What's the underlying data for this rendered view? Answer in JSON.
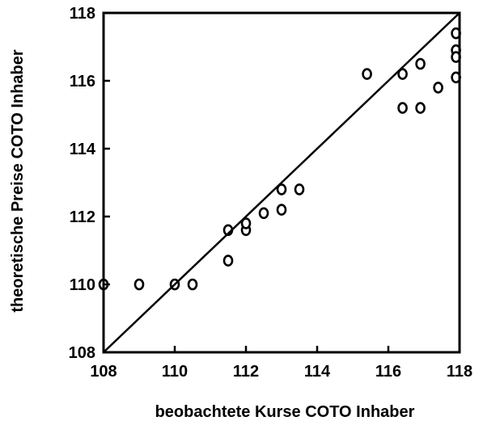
{
  "chart_data": {
    "type": "scatter",
    "title": "",
    "xlabel": "beobachtete Kurse COTO Inhaber",
    "ylabel": "theoretische Preise COTO Inhaber",
    "xlim": [
      108,
      118
    ],
    "ylim": [
      108,
      118
    ],
    "xticks": [
      "108",
      "110",
      "112",
      "114",
      "116",
      "118"
    ],
    "yticks": [
      "108",
      "110",
      "112",
      "114",
      "116",
      "118"
    ],
    "grid": false,
    "legend": "none",
    "reference_line": {
      "from": [
        108,
        108
      ],
      "to": [
        118,
        118
      ],
      "label": ""
    },
    "points": [
      {
        "x": 108.0,
        "y": 110.0
      },
      {
        "x": 109.0,
        "y": 110.0
      },
      {
        "x": 110.0,
        "y": 110.0
      },
      {
        "x": 110.5,
        "y": 110.0
      },
      {
        "x": 111.5,
        "y": 110.7
      },
      {
        "x": 111.5,
        "y": 111.6
      },
      {
        "x": 112.0,
        "y": 111.6
      },
      {
        "x": 112.0,
        "y": 111.8
      },
      {
        "x": 112.5,
        "y": 112.1
      },
      {
        "x": 113.0,
        "y": 112.2
      },
      {
        "x": 113.0,
        "y": 112.8
      },
      {
        "x": 113.5,
        "y": 112.8
      },
      {
        "x": 115.4,
        "y": 116.2
      },
      {
        "x": 116.4,
        "y": 116.2
      },
      {
        "x": 116.4,
        "y": 115.2
      },
      {
        "x": 116.9,
        "y": 116.5
      },
      {
        "x": 116.9,
        "y": 115.2
      },
      {
        "x": 117.4,
        "y": 115.8
      },
      {
        "x": 117.9,
        "y": 117.4
      },
      {
        "x": 117.9,
        "y": 116.9
      },
      {
        "x": 117.9,
        "y": 116.7
      },
      {
        "x": 117.9,
        "y": 116.1
      }
    ]
  }
}
